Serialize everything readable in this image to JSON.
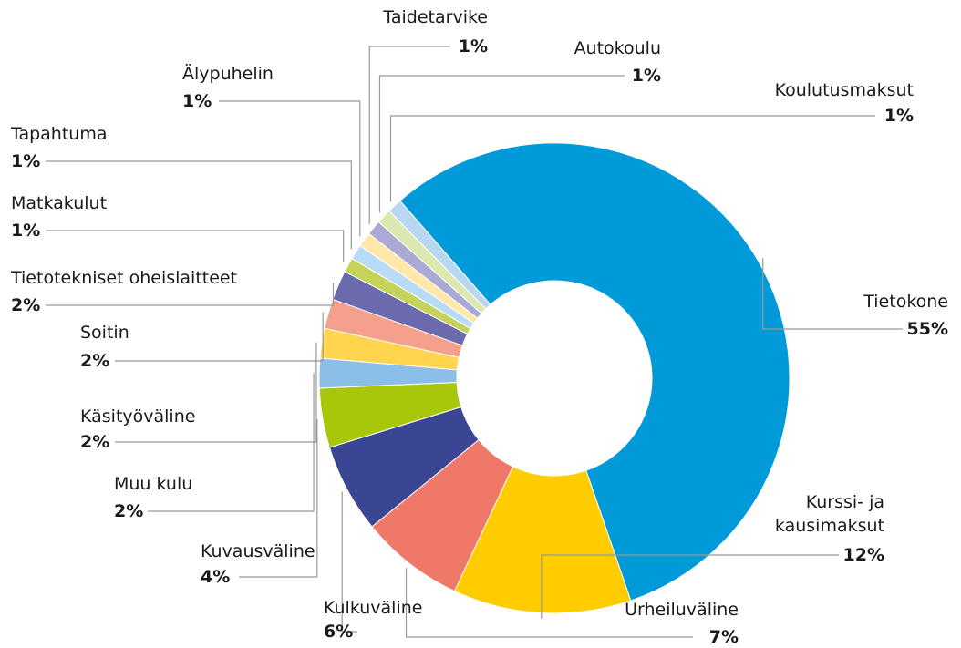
{
  "chart_data": {
    "type": "donut",
    "categories": [
      "Tietokone",
      "Kurssi- ja\nkausimaksut",
      "Urheiluväline",
      "Kulkuväline",
      "Kuvausväline",
      "Muu kulu",
      "Käsityöväline",
      "Soitin",
      "Tietotekniset oheislaitteet",
      "Matkakulut",
      "Tapahtuma",
      "Älypuhelin",
      "Taidetarvike",
      "Autokoulu",
      "Koulutusmaksut"
    ],
    "values": [
      55,
      12,
      7,
      6,
      4,
      2,
      2,
      2,
      2,
      1,
      1,
      1,
      1,
      1,
      1
    ],
    "value_labels": [
      "55%",
      "12%",
      "7%",
      "6%",
      "4%",
      "2%",
      "2%",
      "2%",
      "2%",
      "1%",
      "1%",
      "1%",
      "1%",
      "1%",
      "1%"
    ],
    "colors": [
      "#009ad8",
      "#ffcc00",
      "#f07868",
      "#3a4593",
      "#a8c70a",
      "#8cbfe8",
      "#ffd54f",
      "#f4a08c",
      "#6a6aad",
      "#c5d35a",
      "#b8dcf5",
      "#ffe8a8",
      "#aaaad5",
      "#dde8b0",
      "#b8d8f2"
    ]
  }
}
